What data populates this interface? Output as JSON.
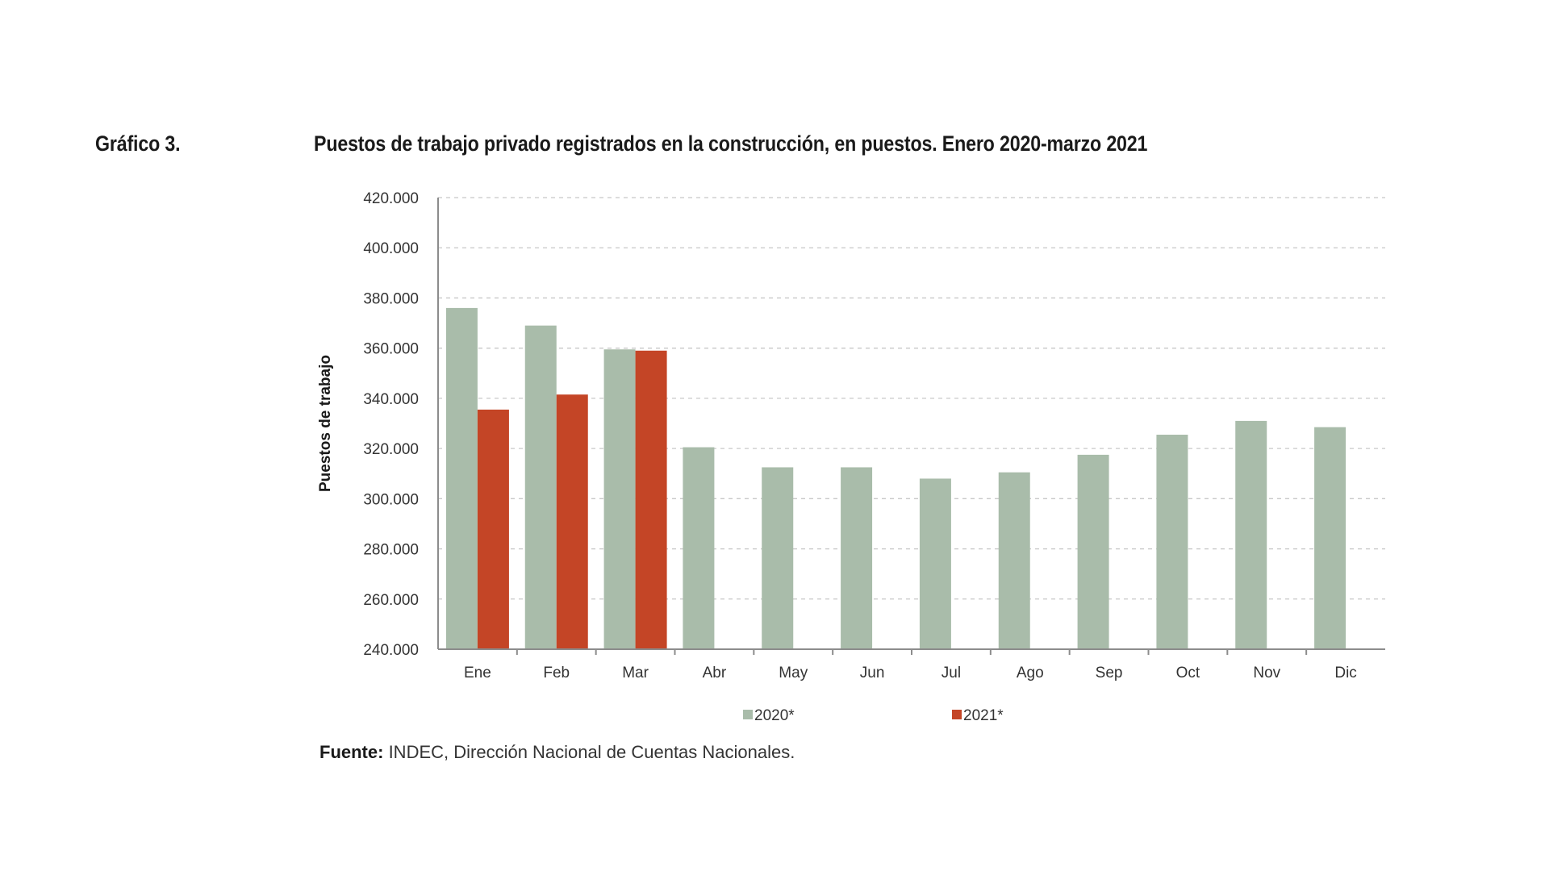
{
  "figure": {
    "label": "Gráfico 3.",
    "title": "Puestos de trabajo privado registrados en la construcción, en puestos. Enero 2020-marzo 2021",
    "source_label": "Fuente:",
    "source_text": " INDEC, Dirección Nacional de Cuentas Nacionales."
  },
  "chart_data": {
    "type": "bar",
    "title": "Puestos de trabajo privado registrados en la construcción, en puestos. Enero 2020-marzo 2021",
    "xlabel": "",
    "ylabel": "Puestos de trabajo",
    "ylim": [
      240000,
      420000
    ],
    "yticks": [
      240000,
      260000,
      280000,
      300000,
      320000,
      340000,
      360000,
      380000,
      400000,
      420000
    ],
    "ytick_labels": [
      "240.000",
      "260.000",
      "280.000",
      "300.000",
      "320.000",
      "340.000",
      "360.000",
      "380.000",
      "400.000",
      "420.000"
    ],
    "grid": true,
    "legend_position": "bottom",
    "categories": [
      "Ene",
      "Feb",
      "Mar",
      "Abr",
      "May",
      "Jun",
      "Jul",
      "Ago",
      "Sep",
      "Oct",
      "Nov",
      "Dic"
    ],
    "series": [
      {
        "name": "2020*",
        "legend_label": "2020*",
        "color": "#a9bcaa",
        "values": [
          376000,
          369000,
          359500,
          320500,
          312500,
          312500,
          308000,
          310500,
          317500,
          325500,
          331000,
          328500
        ]
      },
      {
        "name": "2021*",
        "legend_label": "2021*",
        "color": "#c44526",
        "values": [
          335500,
          341500,
          359000,
          null,
          null,
          null,
          null,
          null,
          null,
          null,
          null,
          null
        ]
      }
    ]
  }
}
